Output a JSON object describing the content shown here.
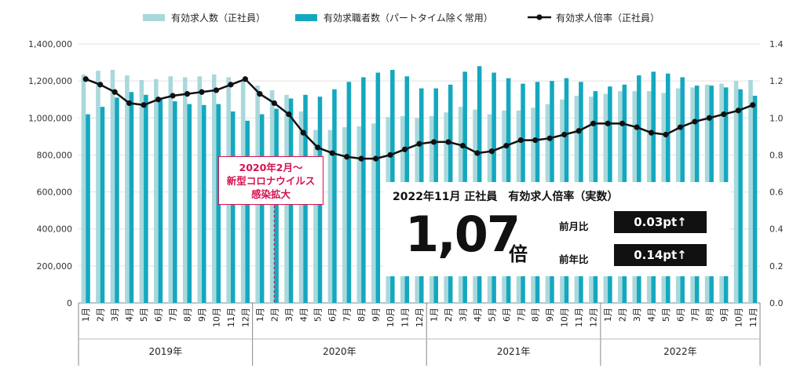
{
  "chart_data": {
    "type": "bar",
    "legend": [
      "有効求人数（正社員）",
      "有効求職者数（パートタイム除く常用）",
      "有効求人倍率（正社員）"
    ],
    "y_left": {
      "min": 0,
      "max": 1400000,
      "ticks": [
        "0",
        "200,000",
        "400,000",
        "600,000",
        "800,000",
        "1,000,000",
        "1,200,000",
        "1,400,000"
      ]
    },
    "y_right": {
      "min": 0,
      "max": 1.4,
      "ticks": [
        "0.0",
        "0.2",
        "0.4",
        "0.6",
        "0.8",
        "1.0",
        "1.2",
        "1.4"
      ]
    },
    "months": [
      "1月",
      "2月",
      "3月",
      "4月",
      "5月",
      "6月",
      "7月",
      "8月",
      "9月",
      "10月",
      "11月",
      "12月"
    ],
    "years": [
      "2019年",
      "2020年",
      "2021年",
      "2022年"
    ],
    "series": [
      {
        "name": "有効求人数（正社員）",
        "color": "#a8d8dc",
        "values": [
          1235000,
          1255000,
          1260000,
          1230000,
          1205000,
          1210000,
          1225000,
          1220000,
          1225000,
          1235000,
          1220000,
          1200000,
          1175000,
          1150000,
          1125000,
          1035000,
          935000,
          935000,
          950000,
          955000,
          970000,
          1005000,
          1010000,
          1000000,
          1010000,
          1030000,
          1060000,
          1045000,
          1020000,
          1040000,
          1040000,
          1055000,
          1075000,
          1100000,
          1120000,
          1115000,
          1130000,
          1145000,
          1145000,
          1145000,
          1135000,
          1160000,
          1165000,
          1180000,
          1185000,
          1200000,
          1205000
        ]
      },
      {
        "name": "有効求職者数（パートタイム除く常用）",
        "color": "#14a8bf",
        "values": [
          1020000,
          1060000,
          1110000,
          1140000,
          1125000,
          1100000,
          1090000,
          1075000,
          1070000,
          1075000,
          1035000,
          985000,
          1020000,
          1050000,
          1105000,
          1125000,
          1115000,
          1155000,
          1195000,
          1220000,
          1245000,
          1260000,
          1225000,
          1160000,
          1160000,
          1180000,
          1250000,
          1280000,
          1245000,
          1215000,
          1185000,
          1195000,
          1200000,
          1215000,
          1195000,
          1145000,
          1170000,
          1180000,
          1230000,
          1250000,
          1240000,
          1220000,
          1175000,
          1175000,
          1165000,
          1155000,
          1120000
        ]
      },
      {
        "name": "有効求人倍率（正社員）",
        "color": "#111111",
        "values": [
          1.21,
          1.18,
          1.14,
          1.08,
          1.07,
          1.1,
          1.12,
          1.13,
          1.14,
          1.15,
          1.18,
          1.21,
          1.13,
          1.08,
          1.02,
          0.92,
          0.84,
          0.81,
          0.79,
          0.78,
          0.78,
          0.8,
          0.83,
          0.86,
          0.87,
          0.87,
          0.85,
          0.81,
          0.82,
          0.85,
          0.88,
          0.88,
          0.89,
          0.91,
          0.93,
          0.97,
          0.97,
          0.97,
          0.95,
          0.92,
          0.91,
          0.95,
          0.98,
          1.0,
          1.02,
          1.04,
          1.07
        ]
      }
    ]
  },
  "callout": {
    "line1": "2020年2月～",
    "line2": "新型コロナウイルス",
    "line3": "感染拡大"
  },
  "infobox": {
    "title": "2022年11月 正社員　有効求人倍率（実数）",
    "value": "1,07",
    "unit": "倍",
    "mom_label": "前月比",
    "mom_value": "0.03pt↑",
    "yoy_label": "前年比",
    "yoy_value": "0.14pt↑"
  }
}
